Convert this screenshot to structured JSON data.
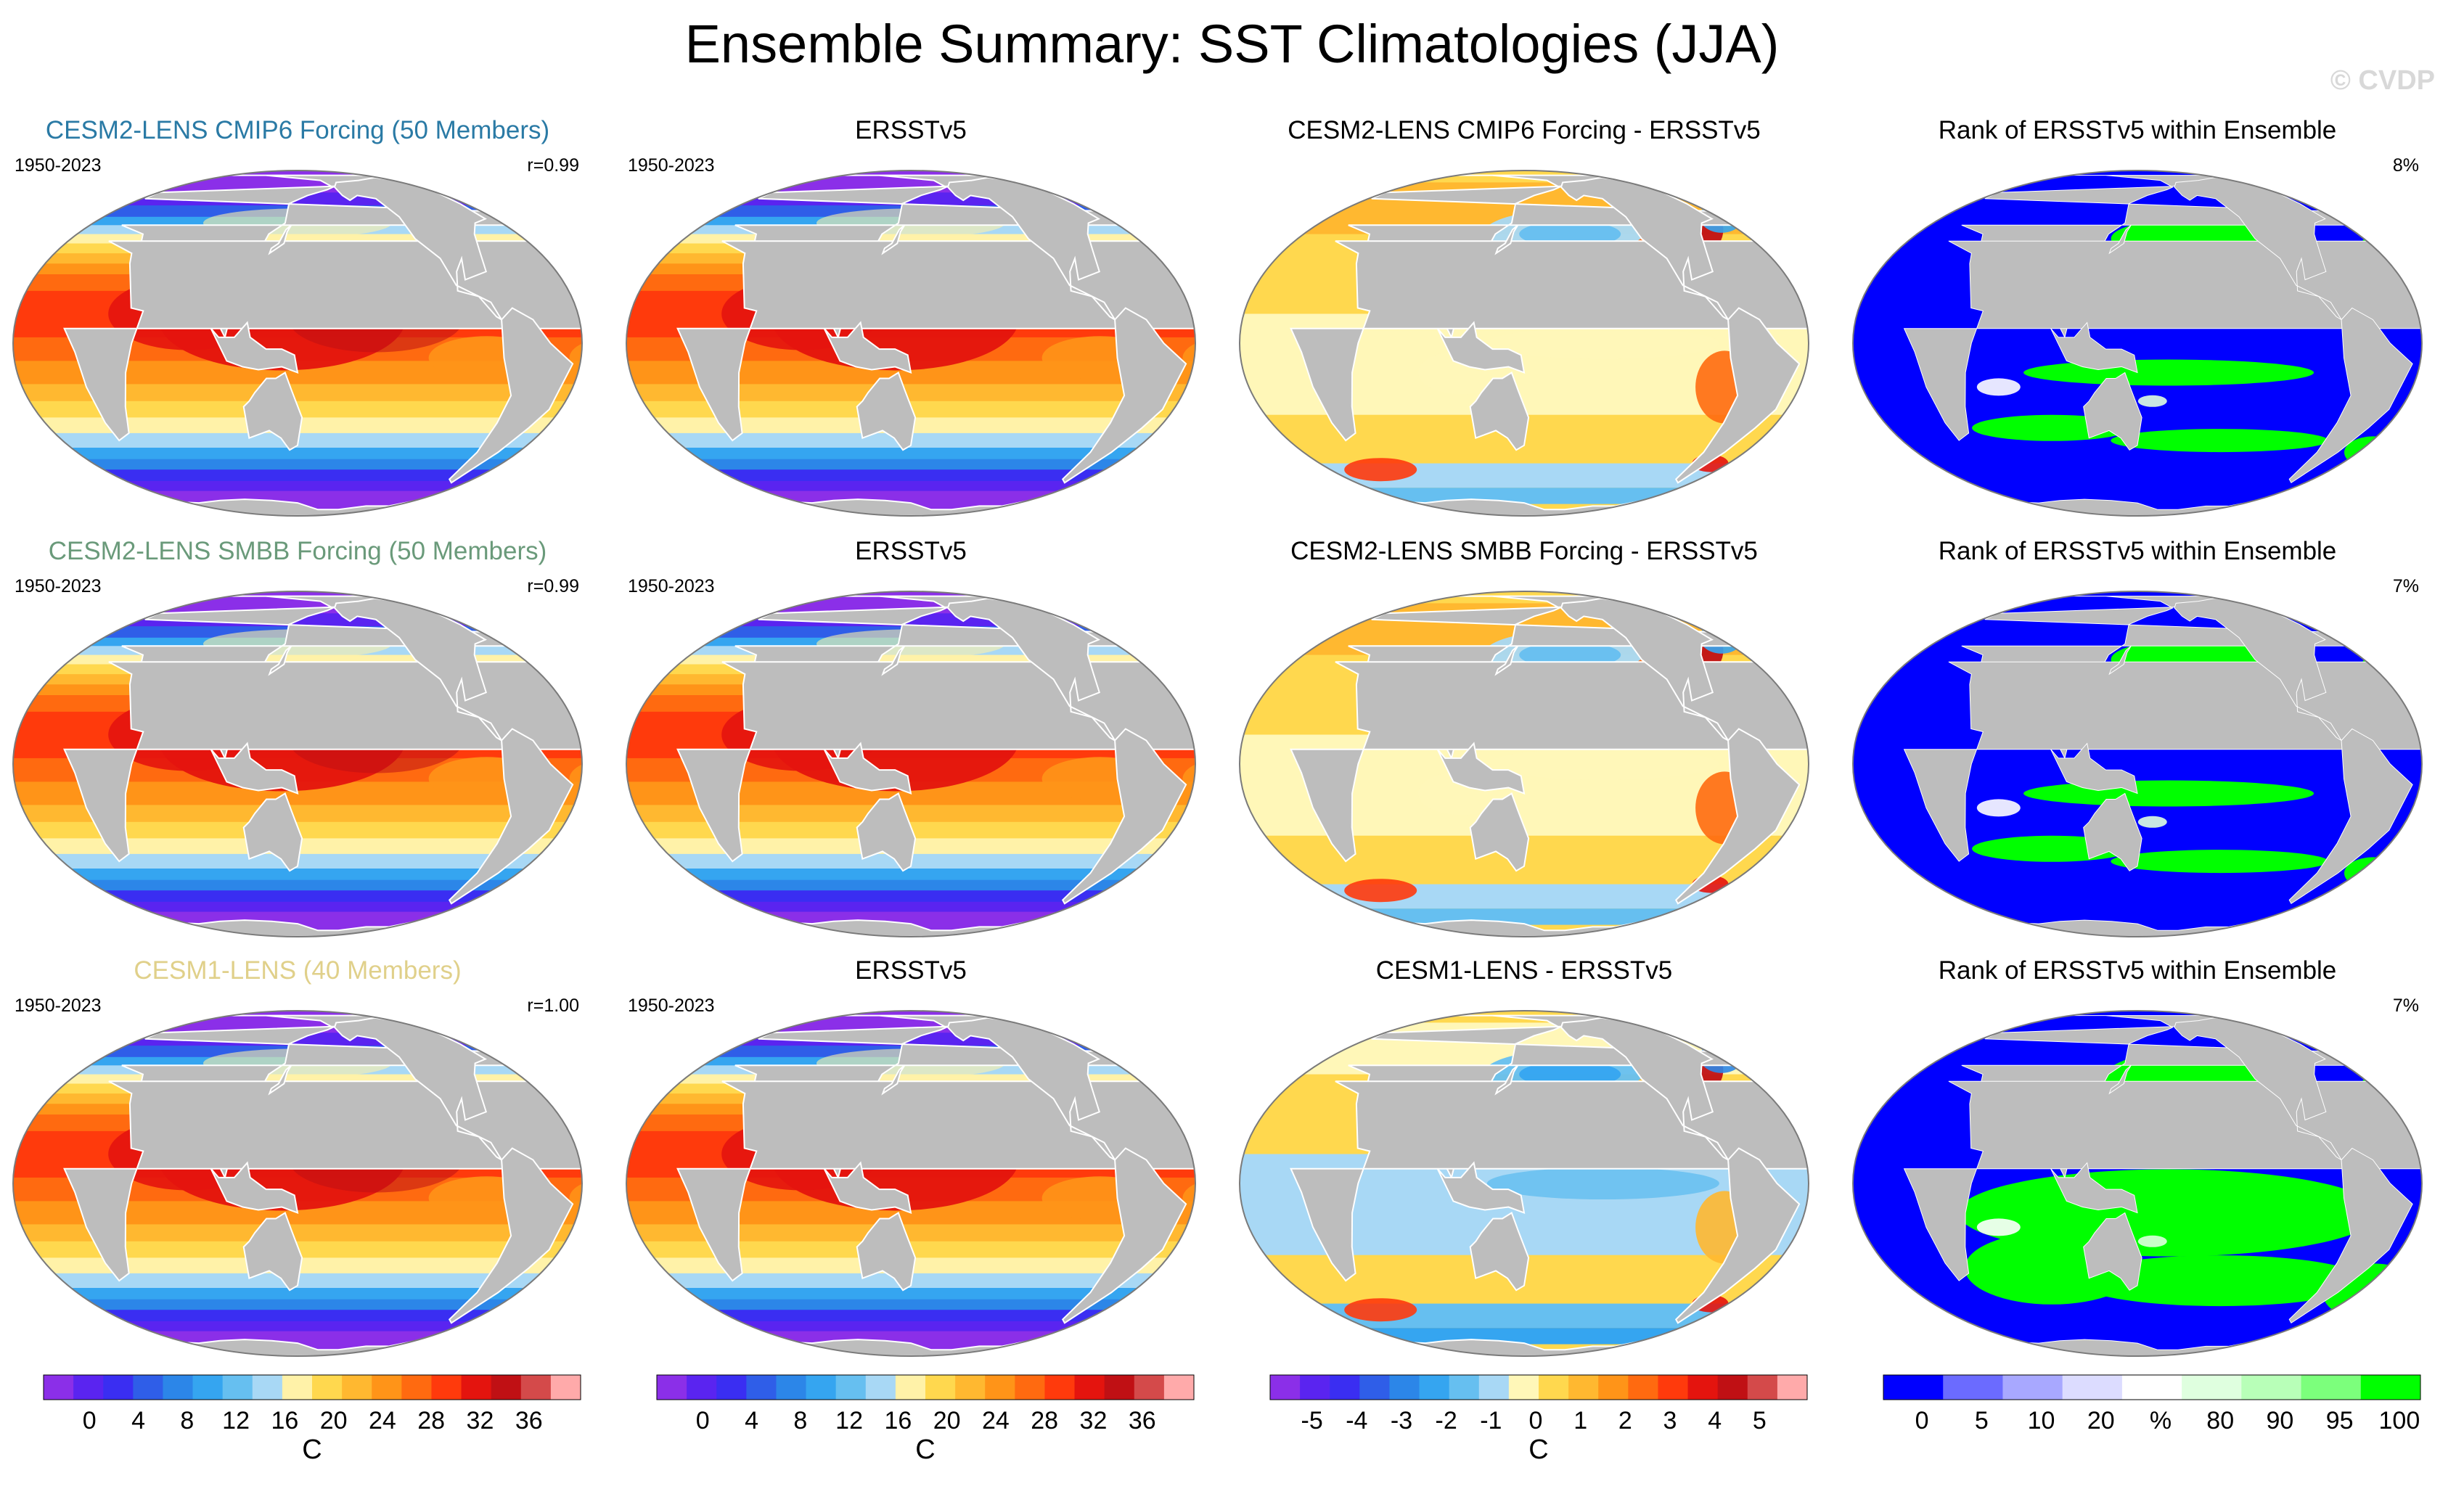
{
  "title": "Ensemble Summary: SST Climatologies (JJA)",
  "watermark": "© CVDP",
  "colors": {
    "land": "#bdbdbd",
    "sst_palette": [
      "#8b2fe8",
      "#5a24f0",
      "#3a2ef2",
      "#2f5ee8",
      "#2c86e8",
      "#35a5f0",
      "#66bff0",
      "#a8d8f5",
      "#fff2a8",
      "#ffd84e",
      "#ffb830",
      "#ff9418",
      "#ff6a10",
      "#ff3a0c",
      "#e4140e",
      "#c01014",
      "#d44a4a",
      "#ffaaaa"
    ],
    "diff_palette": [
      "#8b2fe8",
      "#5a24f0",
      "#3a2ef2",
      "#2f5ee8",
      "#2c86e8",
      "#35a5f0",
      "#66bff0",
      "#a8d8f5",
      "#fff7b8",
      "#ffd84e",
      "#ffb830",
      "#ff9418",
      "#ff6a10",
      "#ff3a0c",
      "#e4140e",
      "#c01014",
      "#d44a4a",
      "#ffaaaa"
    ],
    "rank_palette": [
      "#0000ff",
      "#6b6bff",
      "#a8a8ff",
      "#dcdcff",
      "#ffffff",
      "#dfffdf",
      "#b8ffb8",
      "#7cff7c",
      "#00ff00"
    ]
  },
  "rows": [
    {
      "title": "CESM2-LENS CMIP6 Forcing (50 Members)",
      "title_color": "#2a7aa5",
      "period": "1950-2023",
      "r": "r=0.99",
      "obs_title": "ERSSTv5",
      "obs_period": "1950-2023",
      "diff_title": "CESM2-LENS CMIP6 Forcing - ERSSTv5",
      "rank_title": "Rank of ERSSTv5 within Ensemble",
      "rank_pct": "8%"
    },
    {
      "title": "CESM2-LENS SMBB Forcing (50 Members)",
      "title_color": "#6a9a7a",
      "period": "1950-2023",
      "r": "r=0.99",
      "obs_title": "ERSSTv5",
      "obs_period": "1950-2023",
      "diff_title": "CESM2-LENS SMBB Forcing - ERSSTv5",
      "rank_title": "Rank of ERSSTv5 within Ensemble",
      "rank_pct": "7%"
    },
    {
      "title": "CESM1-LENS (40 Members)",
      "title_color": "#e0d08a",
      "period": "1950-2023",
      "r": "r=1.00",
      "obs_title": "ERSSTv5",
      "obs_period": "1950-2023",
      "diff_title": "CESM1-LENS - ERSSTv5",
      "rank_title": "Rank of ERSSTv5 within Ensemble",
      "rank_pct": "7%"
    }
  ],
  "colorbars": [
    {
      "labels": [
        "0",
        "4",
        "8",
        "12",
        "16",
        "20",
        "24",
        "28",
        "32",
        "36"
      ],
      "unit": "C",
      "palette": "sst_palette"
    },
    {
      "labels": [
        "0",
        "4",
        "8",
        "12",
        "16",
        "20",
        "24",
        "28",
        "32",
        "36"
      ],
      "unit": "C",
      "palette": "sst_palette"
    },
    {
      "labels": [
        "-5",
        "-4",
        "-3",
        "-2",
        "-1",
        "0",
        "1",
        "2",
        "3",
        "4",
        "5"
      ],
      "unit": "C",
      "palette": "diff_palette"
    },
    {
      "labels": [
        "0",
        "5",
        "10",
        "20",
        "%",
        "80",
        "90",
        "95",
        "100"
      ],
      "unit": "",
      "palette": "rank_palette"
    }
  ],
  "chart_data": {
    "type": "heatmap",
    "title": "Ensemble Summary: SST Climatologies (JJA)",
    "season": "JJA",
    "panels": [
      {
        "row": 1,
        "col": 1,
        "title": "CESM2-LENS CMIP6 Forcing (50 Members)",
        "period": "1950-2023",
        "pattern_correlation": 0.99,
        "units": "C",
        "range": [
          0,
          36
        ]
      },
      {
        "row": 1,
        "col": 2,
        "title": "ERSSTv5",
        "period": "1950-2023",
        "units": "C",
        "range": [
          0,
          36
        ]
      },
      {
        "row": 1,
        "col": 3,
        "title": "CESM2-LENS CMIP6 Forcing - ERSSTv5",
        "units": "C",
        "range": [
          -5,
          5
        ]
      },
      {
        "row": 1,
        "col": 4,
        "title": "Rank of ERSSTv5 within Ensemble",
        "units": "%",
        "summary_pct": 8
      },
      {
        "row": 2,
        "col": 1,
        "title": "CESM2-LENS SMBB Forcing (50 Members)",
        "period": "1950-2023",
        "pattern_correlation": 0.99,
        "units": "C",
        "range": [
          0,
          36
        ]
      },
      {
        "row": 2,
        "col": 2,
        "title": "ERSSTv5",
        "period": "1950-2023",
        "units": "C",
        "range": [
          0,
          36
        ]
      },
      {
        "row": 2,
        "col": 3,
        "title": "CESM2-LENS SMBB Forcing - ERSSTv5",
        "units": "C",
        "range": [
          -5,
          5
        ]
      },
      {
        "row": 2,
        "col": 4,
        "title": "Rank of ERSSTv5 within Ensemble",
        "units": "%",
        "summary_pct": 7
      },
      {
        "row": 3,
        "col": 1,
        "title": "CESM1-LENS (40 Members)",
        "period": "1950-2023",
        "pattern_correlation": 1.0,
        "units": "C",
        "range": [
          0,
          36
        ]
      },
      {
        "row": 3,
        "col": 2,
        "title": "ERSSTv5",
        "period": "1950-2023",
        "units": "C",
        "range": [
          0,
          36
        ]
      },
      {
        "row": 3,
        "col": 3,
        "title": "CESM1-LENS - ERSSTv5",
        "units": "C",
        "range": [
          -5,
          5
        ]
      },
      {
        "row": 3,
        "col": 4,
        "title": "Rank of ERSSTv5 within Ensemble",
        "units": "%",
        "summary_pct": 7
      }
    ],
    "colorbars": [
      {
        "ticks": [
          0,
          4,
          8,
          12,
          16,
          20,
          24,
          28,
          32,
          36
        ],
        "unit": "C"
      },
      {
        "ticks": [
          0,
          4,
          8,
          12,
          16,
          20,
          24,
          28,
          32,
          36
        ],
        "unit": "C"
      },
      {
        "ticks": [
          -5,
          -4,
          -3,
          -2,
          -1,
          0,
          1,
          2,
          3,
          4,
          5
        ],
        "unit": "C"
      },
      {
        "ticks": [
          0,
          5,
          10,
          20,
          80,
          90,
          95,
          100
        ],
        "unit": "%"
      }
    ]
  }
}
